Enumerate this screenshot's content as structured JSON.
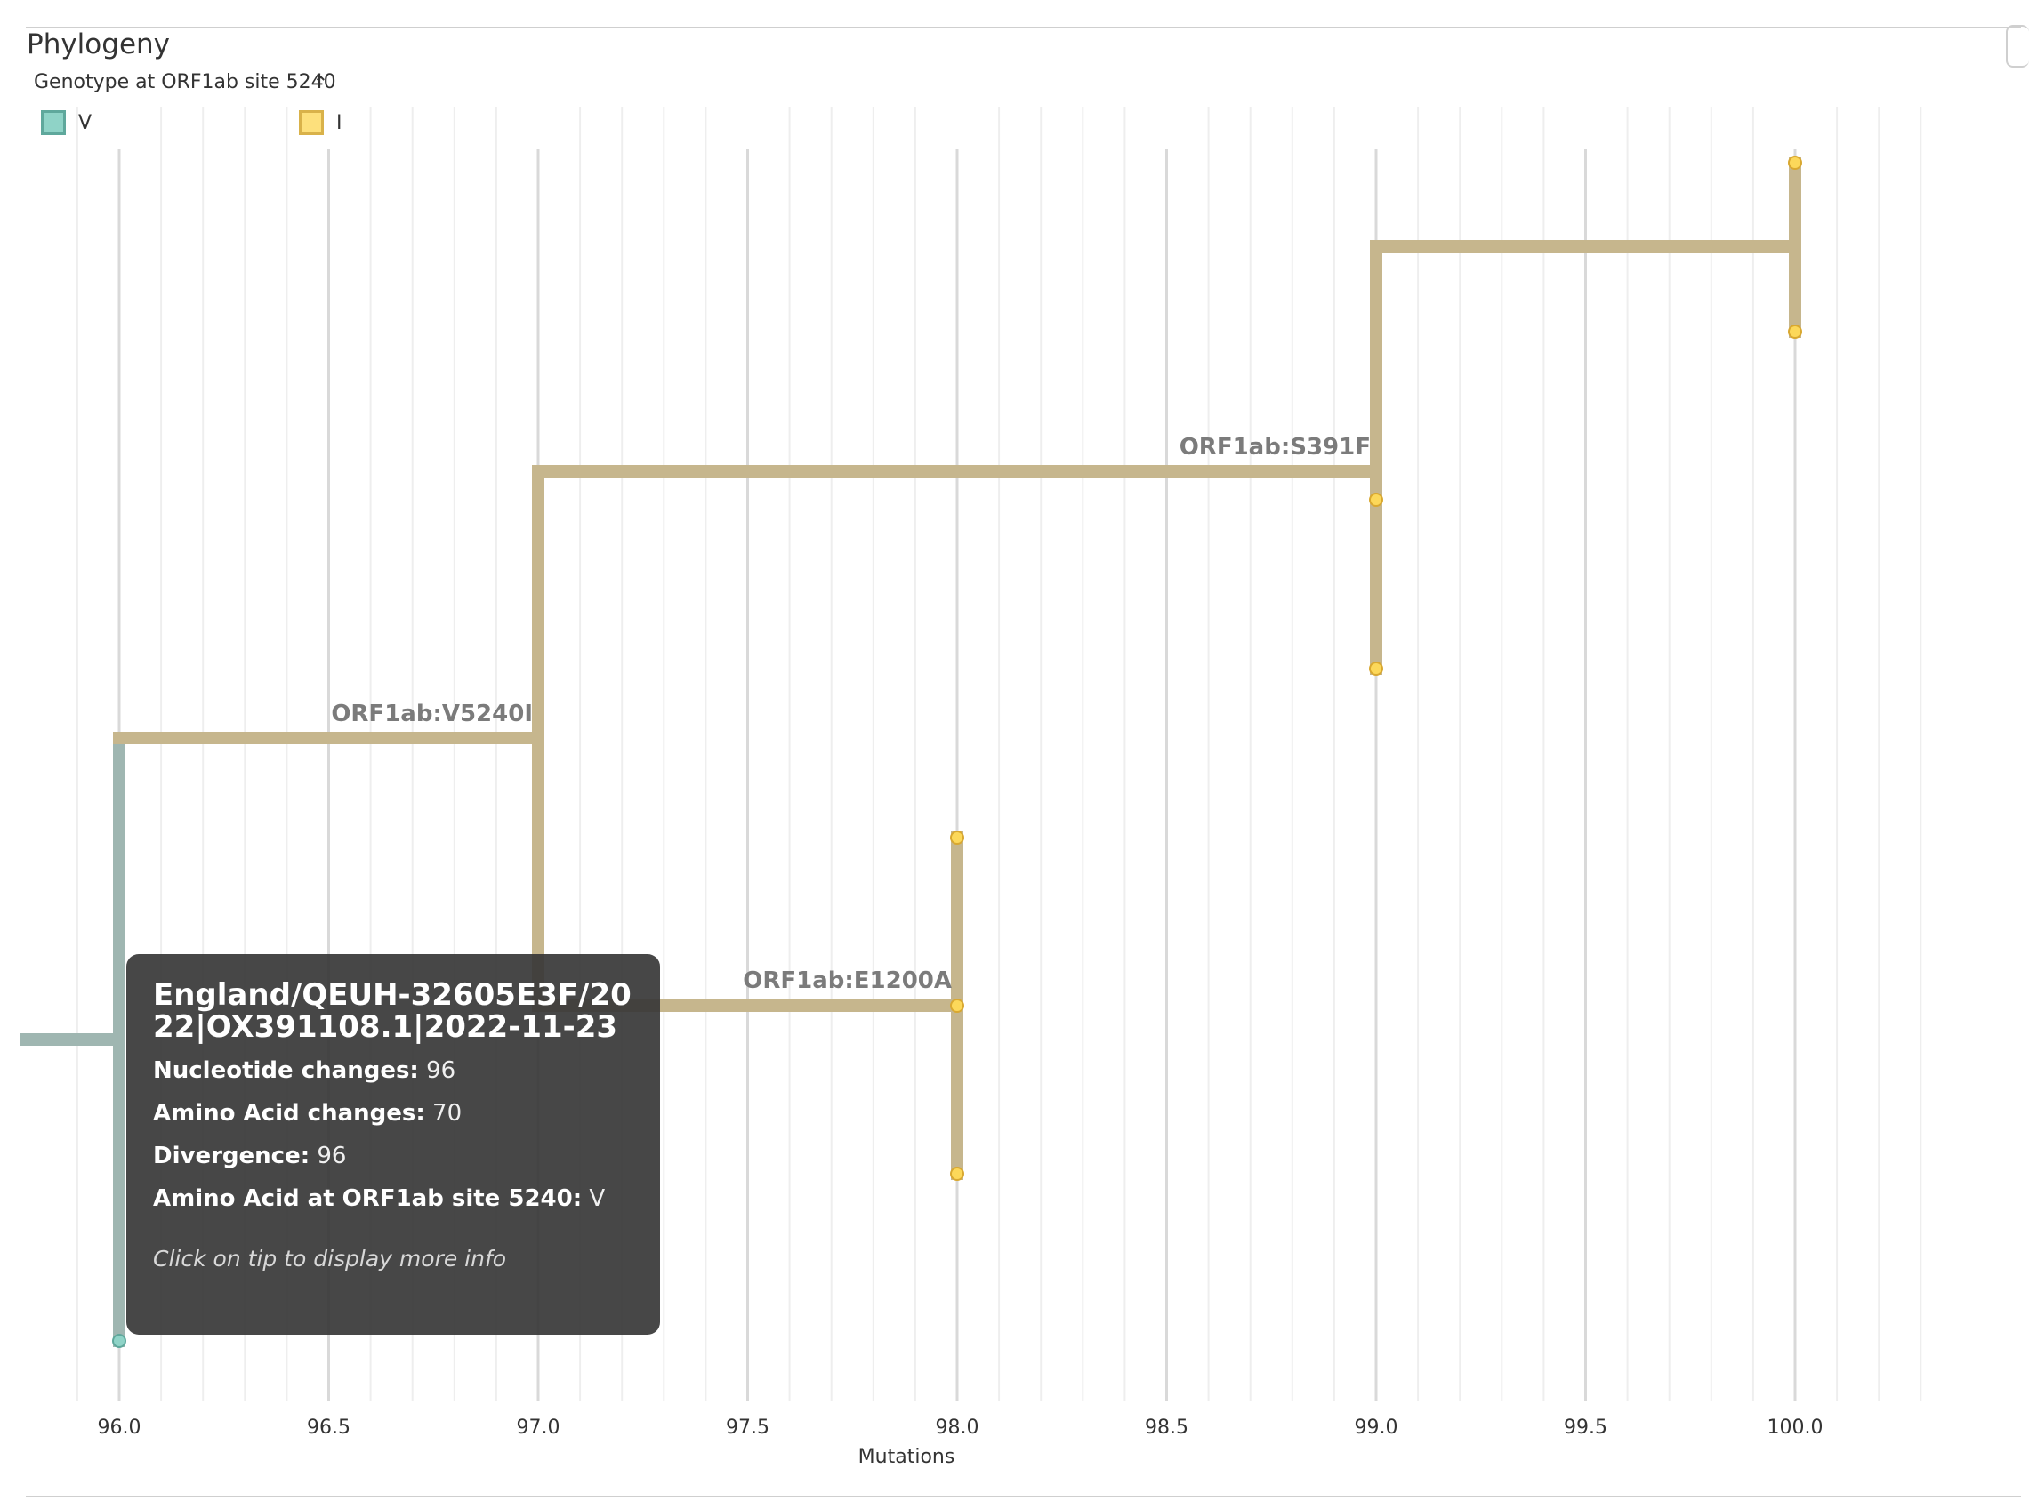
{
  "title": "Phylogeny",
  "legend": {
    "title": "Genotype at ORF1ab site 5240",
    "toggle_icon": "chevron-up-icon",
    "items": [
      {
        "label": "V",
        "fill": "#8fd3c7",
        "stroke": "#5fa89c"
      },
      {
        "label": "I",
        "fill": "#fde07c",
        "stroke": "#d9b24a"
      }
    ]
  },
  "chart_data": {
    "type": "tree",
    "xlabel": "Mutations",
    "xlim": [
      95.9,
      100.3
    ],
    "x_ticks": [
      "96.0",
      "96.5",
      "97.0",
      "97.5",
      "98.0",
      "98.5",
      "99.0",
      "99.5",
      "100.0"
    ],
    "colors": {
      "V": "#9fb6b1",
      "I": "#c6b68d",
      "tip_V": "#8fd3c7",
      "tip_I": "#fcd85a"
    },
    "branch_labels": [
      {
        "text": "ORF1ab:V5240I",
        "x": 97.0
      },
      {
        "text": "ORF1ab:E1200A",
        "x": 98.0
      },
      {
        "text": "ORF1ab:S391F",
        "x": 99.0
      }
    ],
    "tips": [
      {
        "x": 100.0,
        "genotype": "I"
      },
      {
        "x": 100.0,
        "genotype": "I"
      },
      {
        "x": 99.0,
        "genotype": "I"
      },
      {
        "x": 99.0,
        "genotype": "I"
      },
      {
        "x": 98.0,
        "genotype": "I"
      },
      {
        "x": 98.0,
        "genotype": "I"
      },
      {
        "x": 98.0,
        "genotype": "I"
      },
      {
        "x": 96.0,
        "genotype": "V"
      }
    ]
  },
  "tooltip": {
    "title": "England/QEUH-32605E3F/2022|OX391108.1|2022-11-23",
    "rows": [
      {
        "key": "Nucleotide changes:",
        "value": "96"
      },
      {
        "key": "Amino Acid changes:",
        "value": "70"
      },
      {
        "key": "Divergence:",
        "value": "96"
      },
      {
        "key": "Amino Acid at ORF1ab site 5240:",
        "value": "V"
      }
    ],
    "hint": "Click on tip to display more info"
  }
}
